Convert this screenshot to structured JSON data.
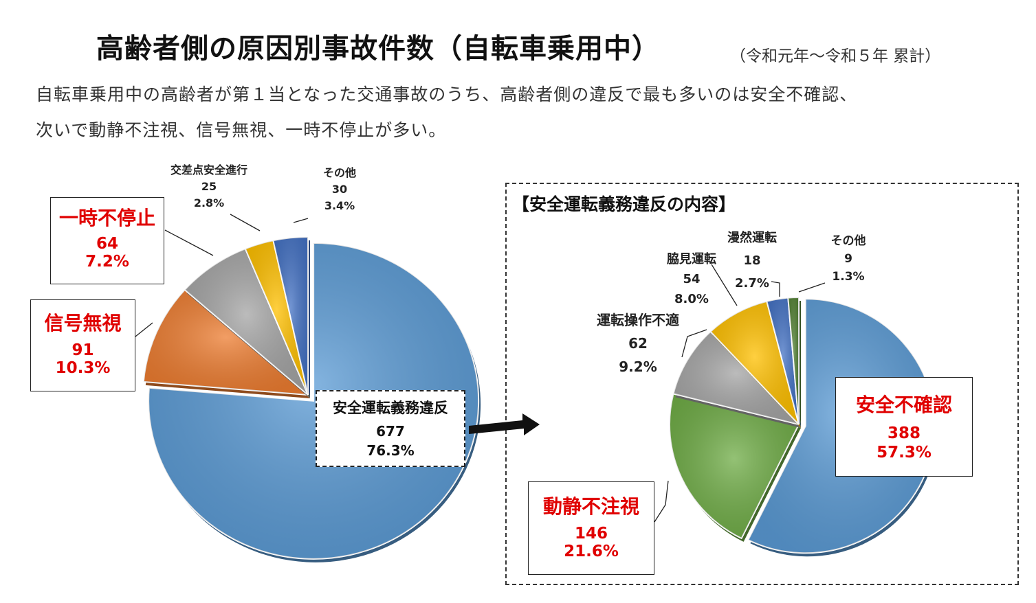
{
  "title": "高齢者側の原因別事故件数（自転車乗用中）",
  "title_note": "（令和元年〜令和５年 累計）",
  "description": [
    "自転車乗用中の高齢者が第１当となった交通事故のうち、高齢者側の違反で最も多いのは安全不確認、",
    "次いで動静不注視、信号無視、一時不停止が多い。"
  ],
  "inset_title": "【安全運転義務違反の内容】",
  "chart_data": [
    {
      "type": "pie",
      "title": "",
      "slices": [
        {
          "label": "安全運転義務違反",
          "value": 677,
          "percent": "76.3%",
          "color": "#5b9bd5"
        },
        {
          "label": "信号無視",
          "value": 91,
          "percent": "10.3%",
          "color": "#ed7d31"
        },
        {
          "label": "一時不停止",
          "value": 64,
          "percent": "7.2%",
          "color": "#a5a5a5"
        },
        {
          "label": "交差点安全進行",
          "value": 25,
          "percent": "2.8%",
          "color": "#ffc000"
        },
        {
          "label": "その他",
          "value": 30,
          "percent": "3.4%",
          "color": "#4472c4"
        }
      ]
    },
    {
      "type": "pie",
      "title": "【安全運転義務違反の内容】",
      "slices": [
        {
          "label": "安全不確認",
          "value": 388,
          "percent": "57.3%",
          "color": "#5b9bd5"
        },
        {
          "label": "動静不注視",
          "value": 146,
          "percent": "21.6%",
          "color": "#70ad47"
        },
        {
          "label": "運転操作不適",
          "value": 62,
          "percent": "9.2%",
          "color": "#a5a5a5"
        },
        {
          "label": "脇見運転",
          "value": 54,
          "percent": "8.0%",
          "color": "#ffc000"
        },
        {
          "label": "漫然運転",
          "value": 18,
          "percent": "2.7%",
          "color": "#4472c4"
        },
        {
          "label": "その他",
          "value": 9,
          "percent": "1.3%",
          "color": "#548235"
        }
      ]
    }
  ]
}
